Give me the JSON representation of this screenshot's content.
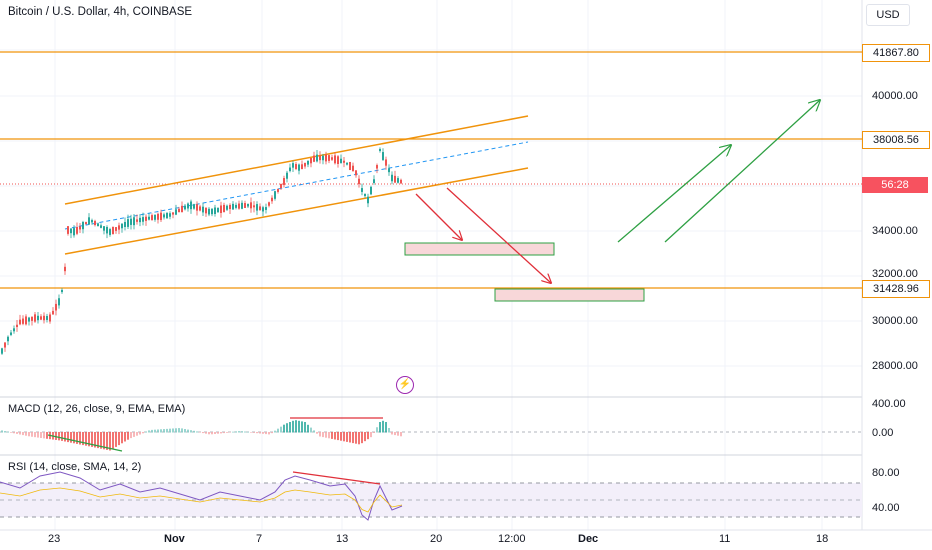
{
  "header": {
    "title": "Bitcoin / U.S. Dollar, 4h, COINBASE",
    "currency": "USD"
  },
  "price_axis": {
    "labels": [
      "40000.00",
      "34000.00",
      "32000.00",
      "30000.00",
      "28000.00"
    ],
    "resistance_tag": "41867.80",
    "level_tag": "38008.56",
    "last_price_tag": "56:28",
    "support_tag": "31428.96"
  },
  "macd": {
    "label": "MACD (12, 26, close, 9, EMA, EMA)",
    "axis": [
      "400.00",
      "0.00"
    ]
  },
  "rsi": {
    "label": "RSI (14, close, SMA, 14, 2)",
    "axis": [
      "80.00",
      "40.00"
    ]
  },
  "time_axis": [
    "23",
    "Nov",
    "7",
    "13",
    "20",
    "12:00",
    "Dec",
    "11",
    "18"
  ],
  "icons": {
    "bolt": "lightning-icon"
  },
  "colors": {
    "up": "#26a69a",
    "down": "#ef5350",
    "channel": "#f0930b",
    "projection_up": "#2ea043",
    "projection_down": "#e0303a",
    "rsi_line": "#7e57c2"
  }
}
